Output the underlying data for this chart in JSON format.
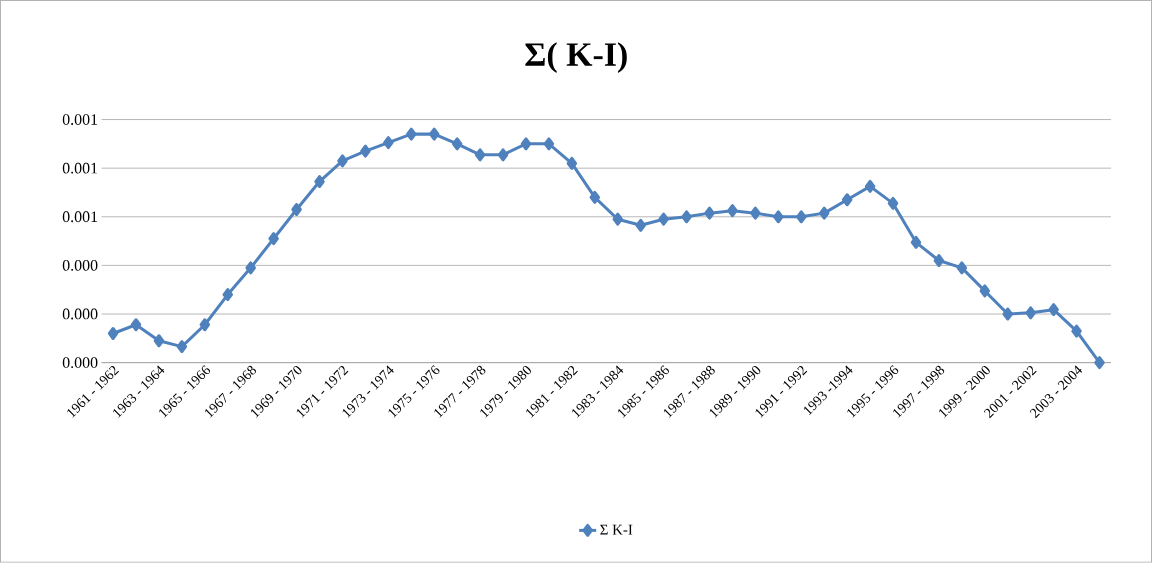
{
  "chart_data": {
    "type": "line",
    "title": "Σ( K-I)",
    "categories": [
      "1961 - 1962",
      null,
      "1963 - 1964",
      null,
      "1965 - 1966",
      null,
      "1967 - 1968",
      null,
      "1969 - 1970",
      null,
      "1971 - 1972",
      null,
      "1973 - 1974",
      null,
      "1975 - 1976",
      null,
      "1977 - 1978",
      null,
      "1979 - 1980",
      null,
      "1981 - 1982",
      null,
      "1983 - 1984",
      null,
      "1985 - 1986",
      null,
      "1987 - 1988",
      null,
      "1989 - 1990",
      null,
      "1991 - 1992",
      null,
      "1993 -1994",
      null,
      "1995 - 1996",
      null,
      "1997 - 1998",
      null,
      "1999 - 2000",
      null,
      "2001 - 2002",
      null,
      "2003 - 2004",
      null
    ],
    "series": [
      {
        "name": "Σ K-I",
        "color": "#4f81bd",
        "values": [
          0.00012,
          0.000156,
          9e-05,
          6.6e-05,
          0.000156,
          0.00028,
          0.00039,
          0.00051,
          0.00063,
          0.000745,
          0.00083,
          0.00087,
          0.000905,
          0.00094,
          0.00094,
          0.0009,
          0.000855,
          0.000855,
          0.0009,
          0.0009,
          0.00082,
          0.00068,
          0.00059,
          0.000565,
          0.00059,
          0.0006,
          0.000615,
          0.000625,
          0.000615,
          0.0006,
          0.0006,
          0.000615,
          0.00067,
          0.000725,
          0.000655,
          0.000495,
          0.00042,
          0.00039,
          0.000295,
          0.0002,
          0.000205,
          0.000218,
          0.00013,
          0
        ]
      }
    ],
    "ylim": [
      0,
      0.001
    ],
    "yticks": [
      {
        "value": 0,
        "label": "0.000"
      },
      {
        "value": 0.0002,
        "label": "0.000"
      },
      {
        "value": 0.0004,
        "label": "0.000"
      },
      {
        "value": 0.0006,
        "label": "0.001"
      },
      {
        "value": 0.0008,
        "label": "0.001"
      },
      {
        "value": 0.001,
        "label": "0.001"
      }
    ],
    "grid": "y",
    "legend": "bottom",
    "marker": "diamond",
    "line_style": "solid"
  }
}
